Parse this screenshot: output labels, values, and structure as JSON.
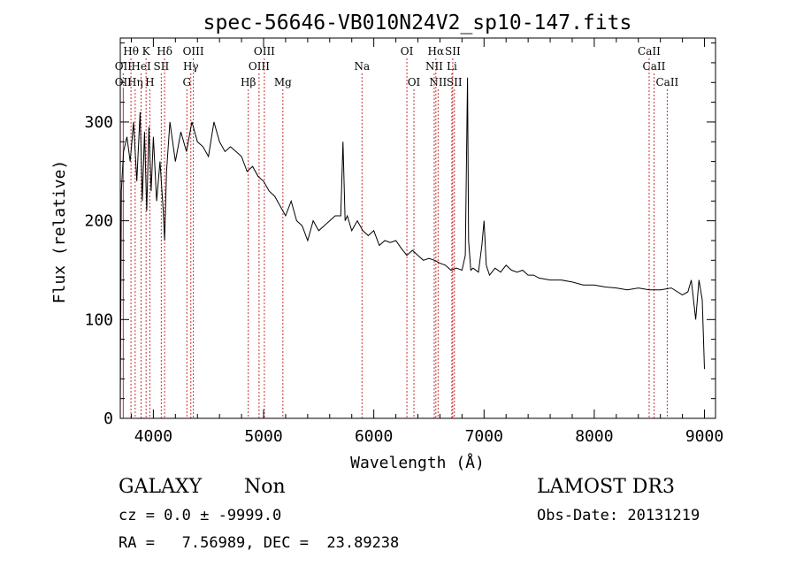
{
  "chart_data": {
    "type": "line",
    "title": "spec-56646-VB010N24V2_sp10-147.fits",
    "xlabel": "Wavelength (Å)",
    "ylabel": "Flux (relative)",
    "xlim": [
      3700,
      9100
    ],
    "ylim": [
      0,
      385
    ],
    "xticks": [
      4000,
      5000,
      6000,
      7000,
      8000,
      9000
    ],
    "yticks": [
      0,
      100,
      200,
      300
    ],
    "x_minor_step": 200,
    "y_minor_step": 20,
    "grid": false,
    "series": [
      {
        "x": [
          3700,
          3710,
          3730,
          3760,
          3790,
          3820,
          3850,
          3880,
          3900,
          3920,
          3940,
          3960,
          3980,
          4000,
          4030,
          4060,
          4090,
          4102,
          4120,
          4150,
          4200,
          4250,
          4300,
          4350,
          4400,
          4450,
          4500,
          4550,
          4600,
          4650,
          4700,
          4750,
          4800,
          4850,
          4900,
          4950,
          5000,
          5050,
          5100,
          5150,
          5200,
          5250,
          5300,
          5350,
          5400,
          5450,
          5500,
          5550,
          5600,
          5650,
          5700,
          5720,
          5740,
          5760,
          5800,
          5850,
          5900,
          5950,
          6000,
          6050,
          6100,
          6150,
          6200,
          6250,
          6300,
          6350,
          6400,
          6450,
          6500,
          6550,
          6600,
          6650,
          6700,
          6750,
          6800,
          6830,
          6850,
          6860,
          6880,
          6900,
          6950,
          6980,
          7000,
          7020,
          7050,
          7100,
          7150,
          7200,
          7250,
          7300,
          7350,
          7400,
          7450,
          7500,
          7600,
          7700,
          7800,
          7900,
          8000,
          8100,
          8200,
          8300,
          8400,
          8500,
          8600,
          8700,
          8800,
          8850,
          8880,
          8900,
          8920,
          8950,
          8980,
          9000
        ],
        "y": [
          10,
          230,
          270,
          285,
          260,
          300,
          240,
          310,
          220,
          290,
          210,
          295,
          230,
          285,
          220,
          260,
          210,
          180,
          250,
          300,
          260,
          290,
          270,
          300,
          280,
          275,
          265,
          300,
          280,
          270,
          275,
          270,
          265,
          250,
          255,
          245,
          240,
          230,
          225,
          215,
          205,
          220,
          200,
          195,
          180,
          200,
          190,
          195,
          200,
          205,
          205,
          280,
          200,
          205,
          190,
          200,
          190,
          185,
          190,
          175,
          180,
          178,
          180,
          172,
          165,
          170,
          165,
          160,
          162,
          160,
          157,
          155,
          150,
          152,
          150,
          165,
          345,
          180,
          150,
          152,
          148,
          175,
          200,
          155,
          145,
          152,
          148,
          155,
          150,
          148,
          150,
          145,
          145,
          142,
          140,
          140,
          138,
          135,
          135,
          133,
          132,
          130,
          132,
          130,
          130,
          132,
          125,
          128,
          140,
          120,
          100,
          140,
          120,
          50
        ]
      }
    ],
    "line_annotations": [
      {
        "label": "OII",
        "x": 3727,
        "tier": 3
      },
      {
        "label": "OII",
        "x": 3727,
        "tier": 2
      },
      {
        "label": "Hθ",
        "x": 3797,
        "tier": 1
      },
      {
        "label": "Hη",
        "x": 3835,
        "tier": 3
      },
      {
        "label": "HeI",
        "x": 3889,
        "tier": 2
      },
      {
        "label": "K",
        "x": 3934,
        "tier": 1
      },
      {
        "label": "H",
        "x": 3968,
        "tier": 3
      },
      {
        "label": "SII",
        "x": 4072,
        "tier": 2
      },
      {
        "label": "Hδ",
        "x": 4102,
        "tier": 1
      },
      {
        "label": "G",
        "x": 4304,
        "tier": 3
      },
      {
        "label": "Hγ",
        "x": 4340,
        "tier": 2
      },
      {
        "label": "OIII",
        "x": 4363,
        "tier": 1
      },
      {
        "label": "Hβ",
        "x": 4861,
        "tier": 3
      },
      {
        "label": "OIII",
        "x": 4959,
        "tier": 2
      },
      {
        "label": "OIII",
        "x": 5007,
        "tier": 1
      },
      {
        "label": "Mg",
        "x": 5175,
        "tier": 3
      },
      {
        "label": "Na",
        "x": 5893,
        "tier": 2
      },
      {
        "label": "OI",
        "x": 6300,
        "tier": 1
      },
      {
        "label": "OI",
        "x": 6364,
        "tier": 3
      },
      {
        "label": "NII",
        "x": 6548,
        "tier": 2
      },
      {
        "label": "NII",
        "x": 6583,
        "tier": 3
      },
      {
        "label": "Hα",
        "x": 6563,
        "tier": 1
      },
      {
        "label": "SII",
        "x": 6716,
        "tier": 1
      },
      {
        "label": "SII",
        "x": 6731,
        "tier": 3
      },
      {
        "label": "Li",
        "x": 6708,
        "tier": 2
      },
      {
        "label": "CaII",
        "x": 8498,
        "tier": 1
      },
      {
        "label": "CaII",
        "x": 8542,
        "tier": 2
      },
      {
        "label": "CaII",
        "x": 8662,
        "tier": 3
      }
    ]
  },
  "info": {
    "object_class": "GALAXY",
    "subclass": "Non",
    "survey": "LAMOST DR3",
    "redshift_line": "cz = 0.0 ± -9999.0",
    "obs_date": "Obs-Date: 20131219",
    "coords": "RA =   7.56989, DEC =  23.89238"
  }
}
